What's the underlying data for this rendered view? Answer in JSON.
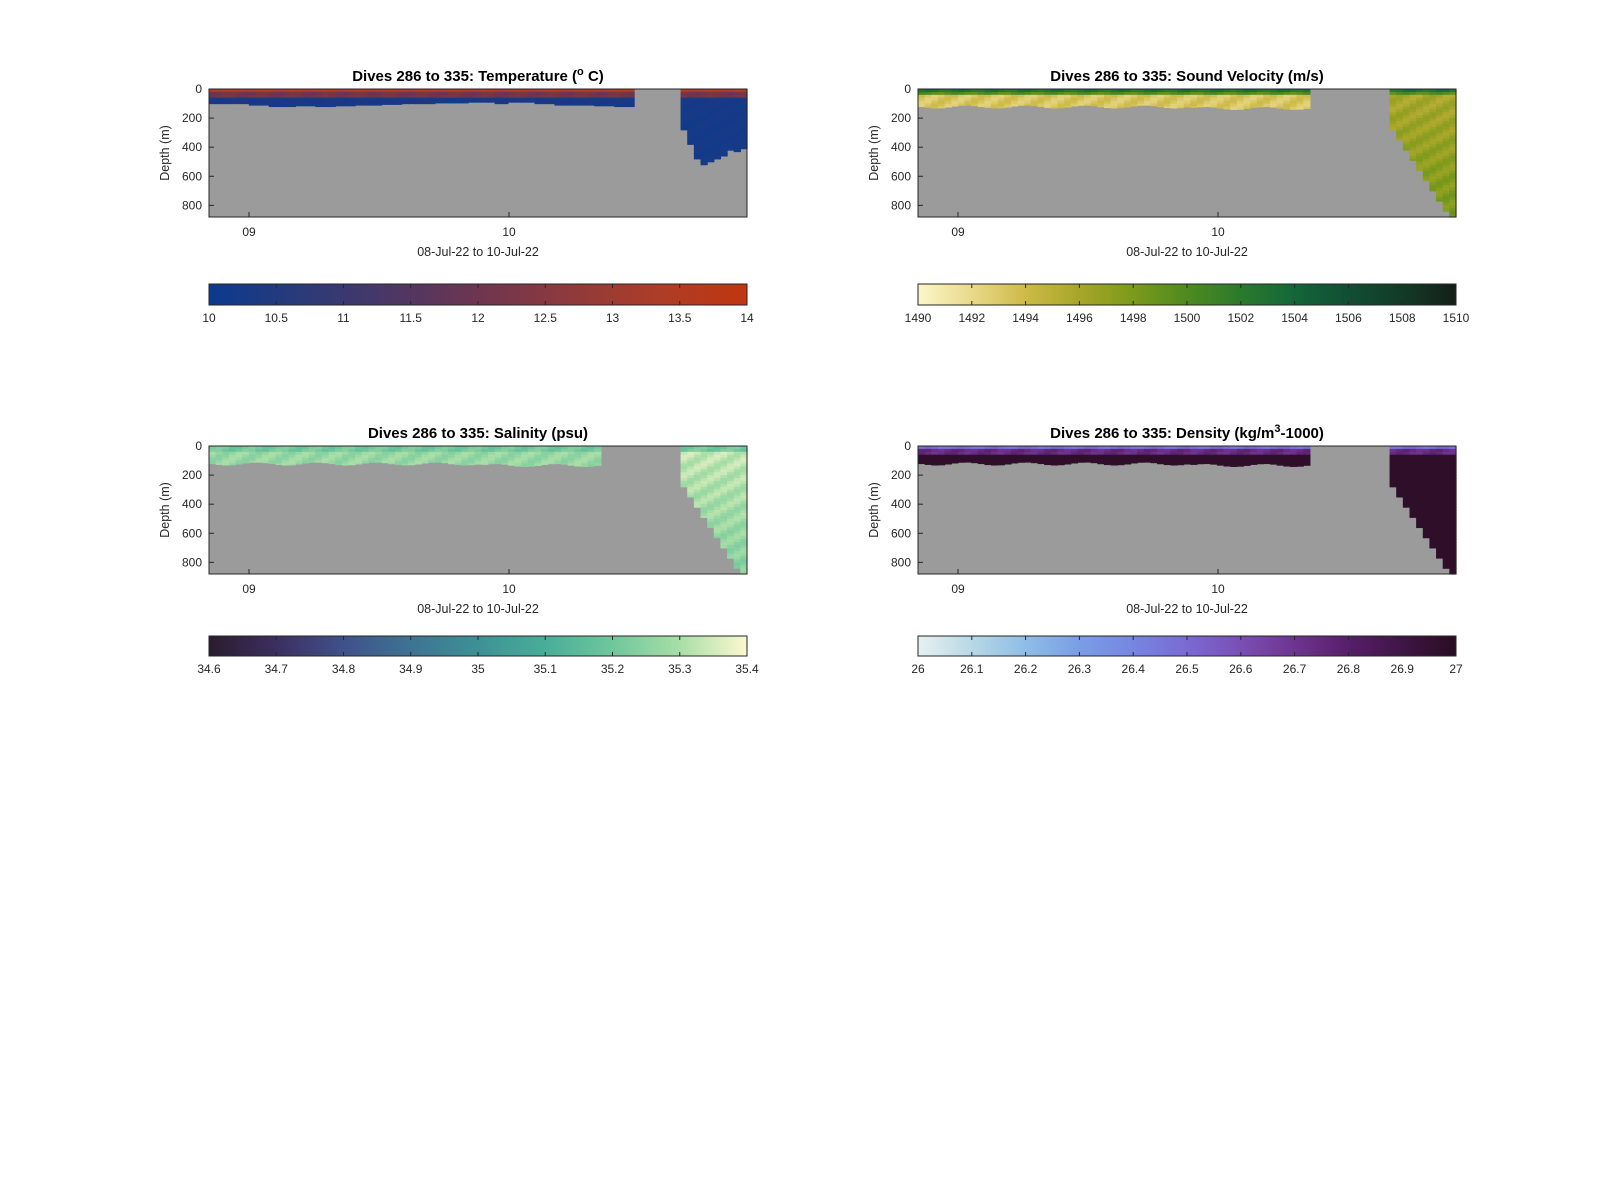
{
  "figure": {
    "background": "#ffffff"
  },
  "chart_data": [
    {
      "type": "heatmap",
      "title": "Dives 286 to 335: Temperature (°C)",
      "title_parts": {
        "prefix": "Dives 286 to 335: Temperature (",
        "sup": "o",
        "suffix": " C)"
      },
      "xlabel": "08-Jul-22 to 10-Jul-22",
      "ylabel": "Depth (m)",
      "x_ticks": [
        "09",
        "10"
      ],
      "y_ticks": [
        "0",
        "200",
        "400",
        "600",
        "800"
      ],
      "ylim": [
        0,
        880
      ],
      "y_reversed": true,
      "variable": "temperature",
      "colorbar": {
        "ticks": [
          "10",
          "10.5",
          "11",
          "11.5",
          "12",
          "12.5",
          "13",
          "13.5",
          "14"
        ],
        "range": [
          10,
          14
        ],
        "colors": [
          "#0b3a8e",
          "#2a3a7a",
          "#4a3766",
          "#6e3550",
          "#8e3a3c",
          "#ad3d27",
          "#c0360f"
        ]
      },
      "no_data_color": "#9b9b9b",
      "bottom_depth_profile_m": [
        100,
        100,
        100,
        100,
        100,
        100,
        110,
        110,
        110,
        120,
        120,
        120,
        120,
        115,
        115,
        115,
        120,
        120,
        120,
        115,
        115,
        115,
        110,
        110,
        110,
        110,
        105,
        105,
        105,
        100,
        100,
        100,
        100,
        100,
        95,
        95,
        95,
        95,
        95,
        90,
        90,
        90,
        90,
        100,
        100,
        90,
        90,
        90,
        90,
        100,
        100,
        100,
        110,
        110,
        110,
        110,
        110,
        110,
        115,
        115,
        115,
        120,
        120,
        120,
        null,
        null,
        null,
        null,
        null,
        null,
        null,
        280,
        380,
        480,
        520,
        500,
        480,
        460,
        420,
        430,
        410
      ]
    },
    {
      "type": "heatmap",
      "title": "Dives 286 to 335: Sound Velocity (m/s)",
      "title_parts": {
        "prefix": "Dives 286 to 335: Sound Velocity (m/s)",
        "sup": "",
        "suffix": ""
      },
      "xlabel": "08-Jul-22 to 10-Jul-22",
      "ylabel": "Depth (m)",
      "x_ticks": [
        "09",
        "10"
      ],
      "y_ticks": [
        "0",
        "200",
        "400",
        "600",
        "800"
      ],
      "ylim": [
        0,
        880
      ],
      "y_reversed": true,
      "variable": "sound velocity",
      "colorbar": {
        "ticks": [
          "1490",
          "1492",
          "1494",
          "1496",
          "1498",
          "1500",
          "1502",
          "1504",
          "1506",
          "1508",
          "1510"
        ],
        "range": [
          1490,
          1510
        ],
        "colors": [
          "#fbf7c8",
          "#e9d98a",
          "#cdba48",
          "#a7a629",
          "#7b9a1b",
          "#4f8a1f",
          "#2a7a2c",
          "#14663a",
          "#114e34",
          "#133a27",
          "#141f18"
        ]
      },
      "no_data_color": "#9b9b9b"
    },
    {
      "type": "heatmap",
      "title": "Dives 286 to 335: Salinity (psu)",
      "title_parts": {
        "prefix": "Dives 286 to 335: Salinity (psu)",
        "sup": "",
        "suffix": ""
      },
      "xlabel": "08-Jul-22 to 10-Jul-22",
      "ylabel": "Depth (m)",
      "x_ticks": [
        "09",
        "10"
      ],
      "y_ticks": [
        "0",
        "200",
        "400",
        "600",
        "800"
      ],
      "ylim": [
        0,
        880
      ],
      "y_reversed": true,
      "variable": "salinity",
      "colorbar": {
        "ticks": [
          "34.6",
          "34.7",
          "34.8",
          "34.9",
          "35",
          "35.1",
          "35.2",
          "35.3",
          "35.4"
        ],
        "range": [
          34.6,
          35.4
        ],
        "colors": [
          "#2a1c2f",
          "#3b2f60",
          "#40518a",
          "#3e7392",
          "#3d9196",
          "#49ad99",
          "#6fc79c",
          "#a8dea7",
          "#fcf8cf"
        ]
      },
      "no_data_color": "#9b9b9b"
    },
    {
      "type": "heatmap",
      "title": "Dives 286 to 335: Density (kg/m³-1000)",
      "title_parts": {
        "prefix": "Dives 286 to 335: Density (kg/m",
        "sup": "3",
        "suffix": "-1000)"
      },
      "xlabel": "08-Jul-22 to 10-Jul-22",
      "ylabel": "Depth (m)",
      "x_ticks": [
        "09",
        "10"
      ],
      "y_ticks": [
        "0",
        "200",
        "400",
        "600",
        "800"
      ],
      "ylim": [
        0,
        880
      ],
      "y_reversed": true,
      "variable": "density",
      "colorbar": {
        "ticks": [
          "26",
          "26.1",
          "26.2",
          "26.3",
          "26.4",
          "26.5",
          "26.6",
          "26.7",
          "26.8",
          "26.9",
          "27"
        ],
        "range": [
          26,
          27
        ],
        "colors": [
          "#e6f1f1",
          "#b7d8e6",
          "#8fbde6",
          "#7a9de6",
          "#7686e0",
          "#7a6ad2",
          "#7a4fb4",
          "#6e348f",
          "#561f69",
          "#3f1546",
          "#2a0c22"
        ]
      },
      "no_data_color": "#9b9b9b"
    }
  ]
}
